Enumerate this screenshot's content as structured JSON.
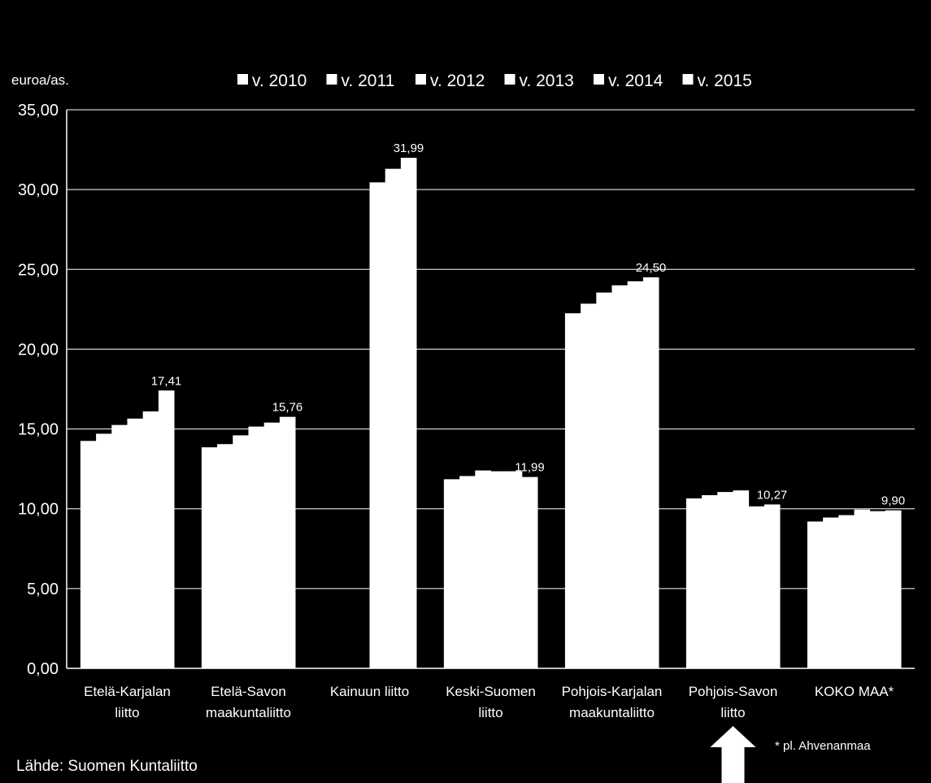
{
  "chart_data": {
    "type": "bar",
    "ylabel": "euroa/as.",
    "ylim": [
      0,
      35
    ],
    "yticks": [
      "0,00",
      "5,00",
      "10,00",
      "15,00",
      "20,00",
      "25,00",
      "30,00",
      "35,00"
    ],
    "grid": true,
    "legend_position": "top",
    "categories": [
      [
        "Etelä-Karjalan",
        "liitto"
      ],
      [
        "Etelä-Savon",
        "maakuntaliitto"
      ],
      [
        "Kainuun liitto"
      ],
      [
        "Keski-Suomen",
        "liitto"
      ],
      [
        "Pohjois-Karjalan",
        "maakuntaliitto"
      ],
      [
        "Pohjois-Savon",
        "liitto"
      ],
      [
        "KOKO MAA*"
      ]
    ],
    "series": [
      {
        "name": "v. 2010",
        "values": [
          14.25,
          13.85,
          null,
          11.85,
          22.25,
          10.65,
          9.2
        ]
      },
      {
        "name": "v. 2011",
        "values": [
          14.7,
          14.05,
          null,
          12.05,
          22.85,
          10.85,
          9.45
        ]
      },
      {
        "name": "v. 2012",
        "values": [
          15.25,
          14.6,
          null,
          12.4,
          23.55,
          11.05,
          9.6
        ]
      },
      {
        "name": "v. 2013",
        "values": [
          15.65,
          15.15,
          30.45,
          12.35,
          24.0,
          11.15,
          9.95
        ]
      },
      {
        "name": "v. 2014",
        "values": [
          16.1,
          15.4,
          31.3,
          12.35,
          24.25,
          10.15,
          9.85
        ]
      },
      {
        "name": "v. 2015",
        "values": [
          17.41,
          15.76,
          31.99,
          11.99,
          24.5,
          10.27,
          9.9
        ]
      }
    ],
    "data_labels": [
      "17,41",
      "15,76",
      "31,99",
      "11,99",
      "24,50",
      "10,27",
      "9,90"
    ],
    "bar_color": "#ffffff",
    "background_color": "#000000",
    "footnote": "* pl. Ahvenanmaa",
    "source": "Lähde: Suomen Kuntaliitto",
    "highlight_arrow": {
      "category_index": 5,
      "icon": "up-arrow-icon"
    }
  }
}
